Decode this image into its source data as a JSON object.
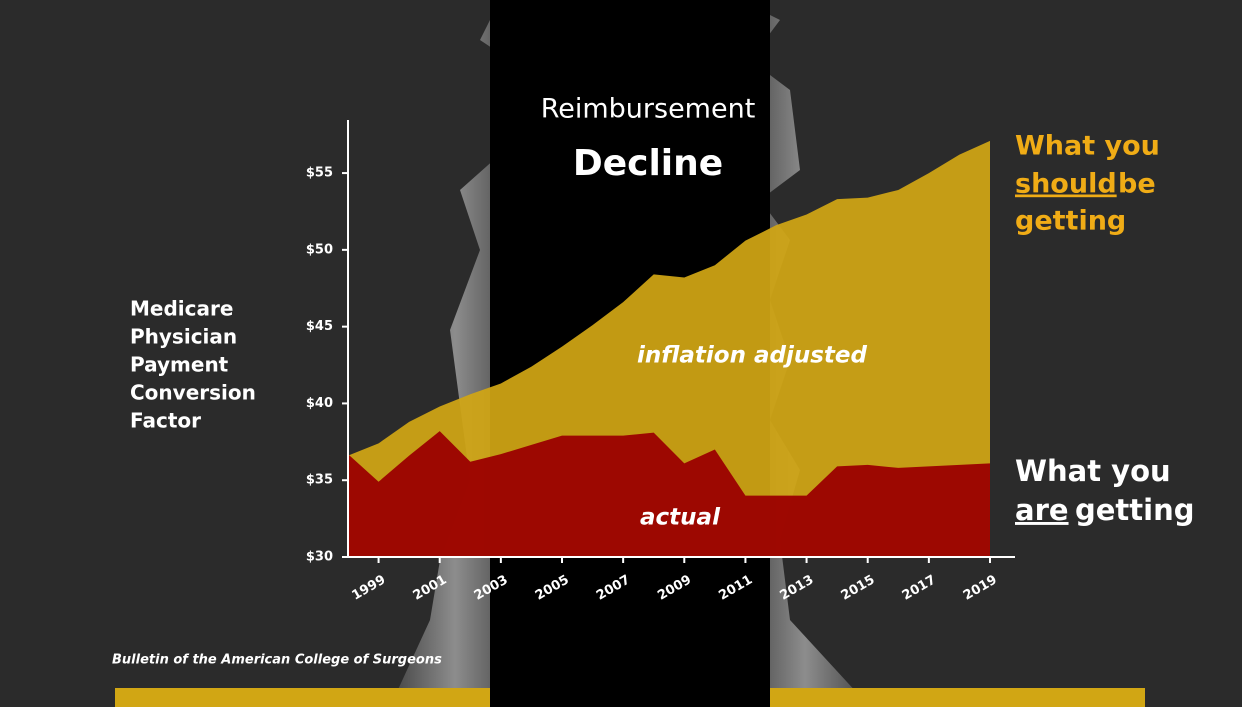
{
  "chart_data": {
    "type": "area",
    "title": "Reimbursement",
    "subtitle": "Decline",
    "ylabel": [
      "Medicare",
      "Physician",
      "Payment",
      "Conversion",
      "Factor"
    ],
    "x": [
      1998,
      1999,
      2000,
      2001,
      2002,
      2003,
      2004,
      2005,
      2006,
      2007,
      2008,
      2009,
      2010,
      2011,
      2012,
      2013,
      2014,
      2015,
      2016,
      2017,
      2018,
      2019
    ],
    "series": [
      {
        "name": "inflation adjusted",
        "color": "#d1a614",
        "values": [
          36.6,
          37.4,
          38.8,
          39.8,
          40.6,
          41.3,
          42.4,
          43.7,
          45.1,
          46.6,
          48.4,
          48.2,
          49.0,
          50.6,
          51.6,
          52.3,
          53.3,
          53.4,
          53.9,
          55.0,
          56.2,
          57.1
        ]
      },
      {
        "name": "actual",
        "color": "#9b0000",
        "values": [
          36.7,
          34.9,
          36.6,
          38.2,
          36.2,
          36.7,
          37.3,
          37.9,
          37.9,
          37.9,
          38.1,
          36.1,
          37.0,
          34.0,
          34.0,
          34.0,
          35.9,
          36.0,
          35.8,
          35.9,
          36.0,
          36.1
        ]
      }
    ],
    "xlim": [
      1998,
      2019
    ],
    "xticks": [
      1999,
      2001,
      2003,
      2005,
      2007,
      2009,
      2011,
      2013,
      2015,
      2017,
      2019
    ],
    "ylim": [
      30,
      58
    ],
    "yticks": [
      {
        "value": 30,
        "label": "$30"
      },
      {
        "value": 35,
        "label": "$35"
      },
      {
        "value": 40,
        "label": "$40"
      },
      {
        "value": 45,
        "label": "$45"
      },
      {
        "value": 50,
        "label": "$50"
      },
      {
        "value": 55,
        "label": "$55"
      }
    ],
    "upper_label": [
      "What you",
      "should",
      "be",
      "getting"
    ],
    "lower_label": [
      "What you",
      "are",
      "getting"
    ],
    "source": "Bulletin of the American College of Surgeons"
  }
}
